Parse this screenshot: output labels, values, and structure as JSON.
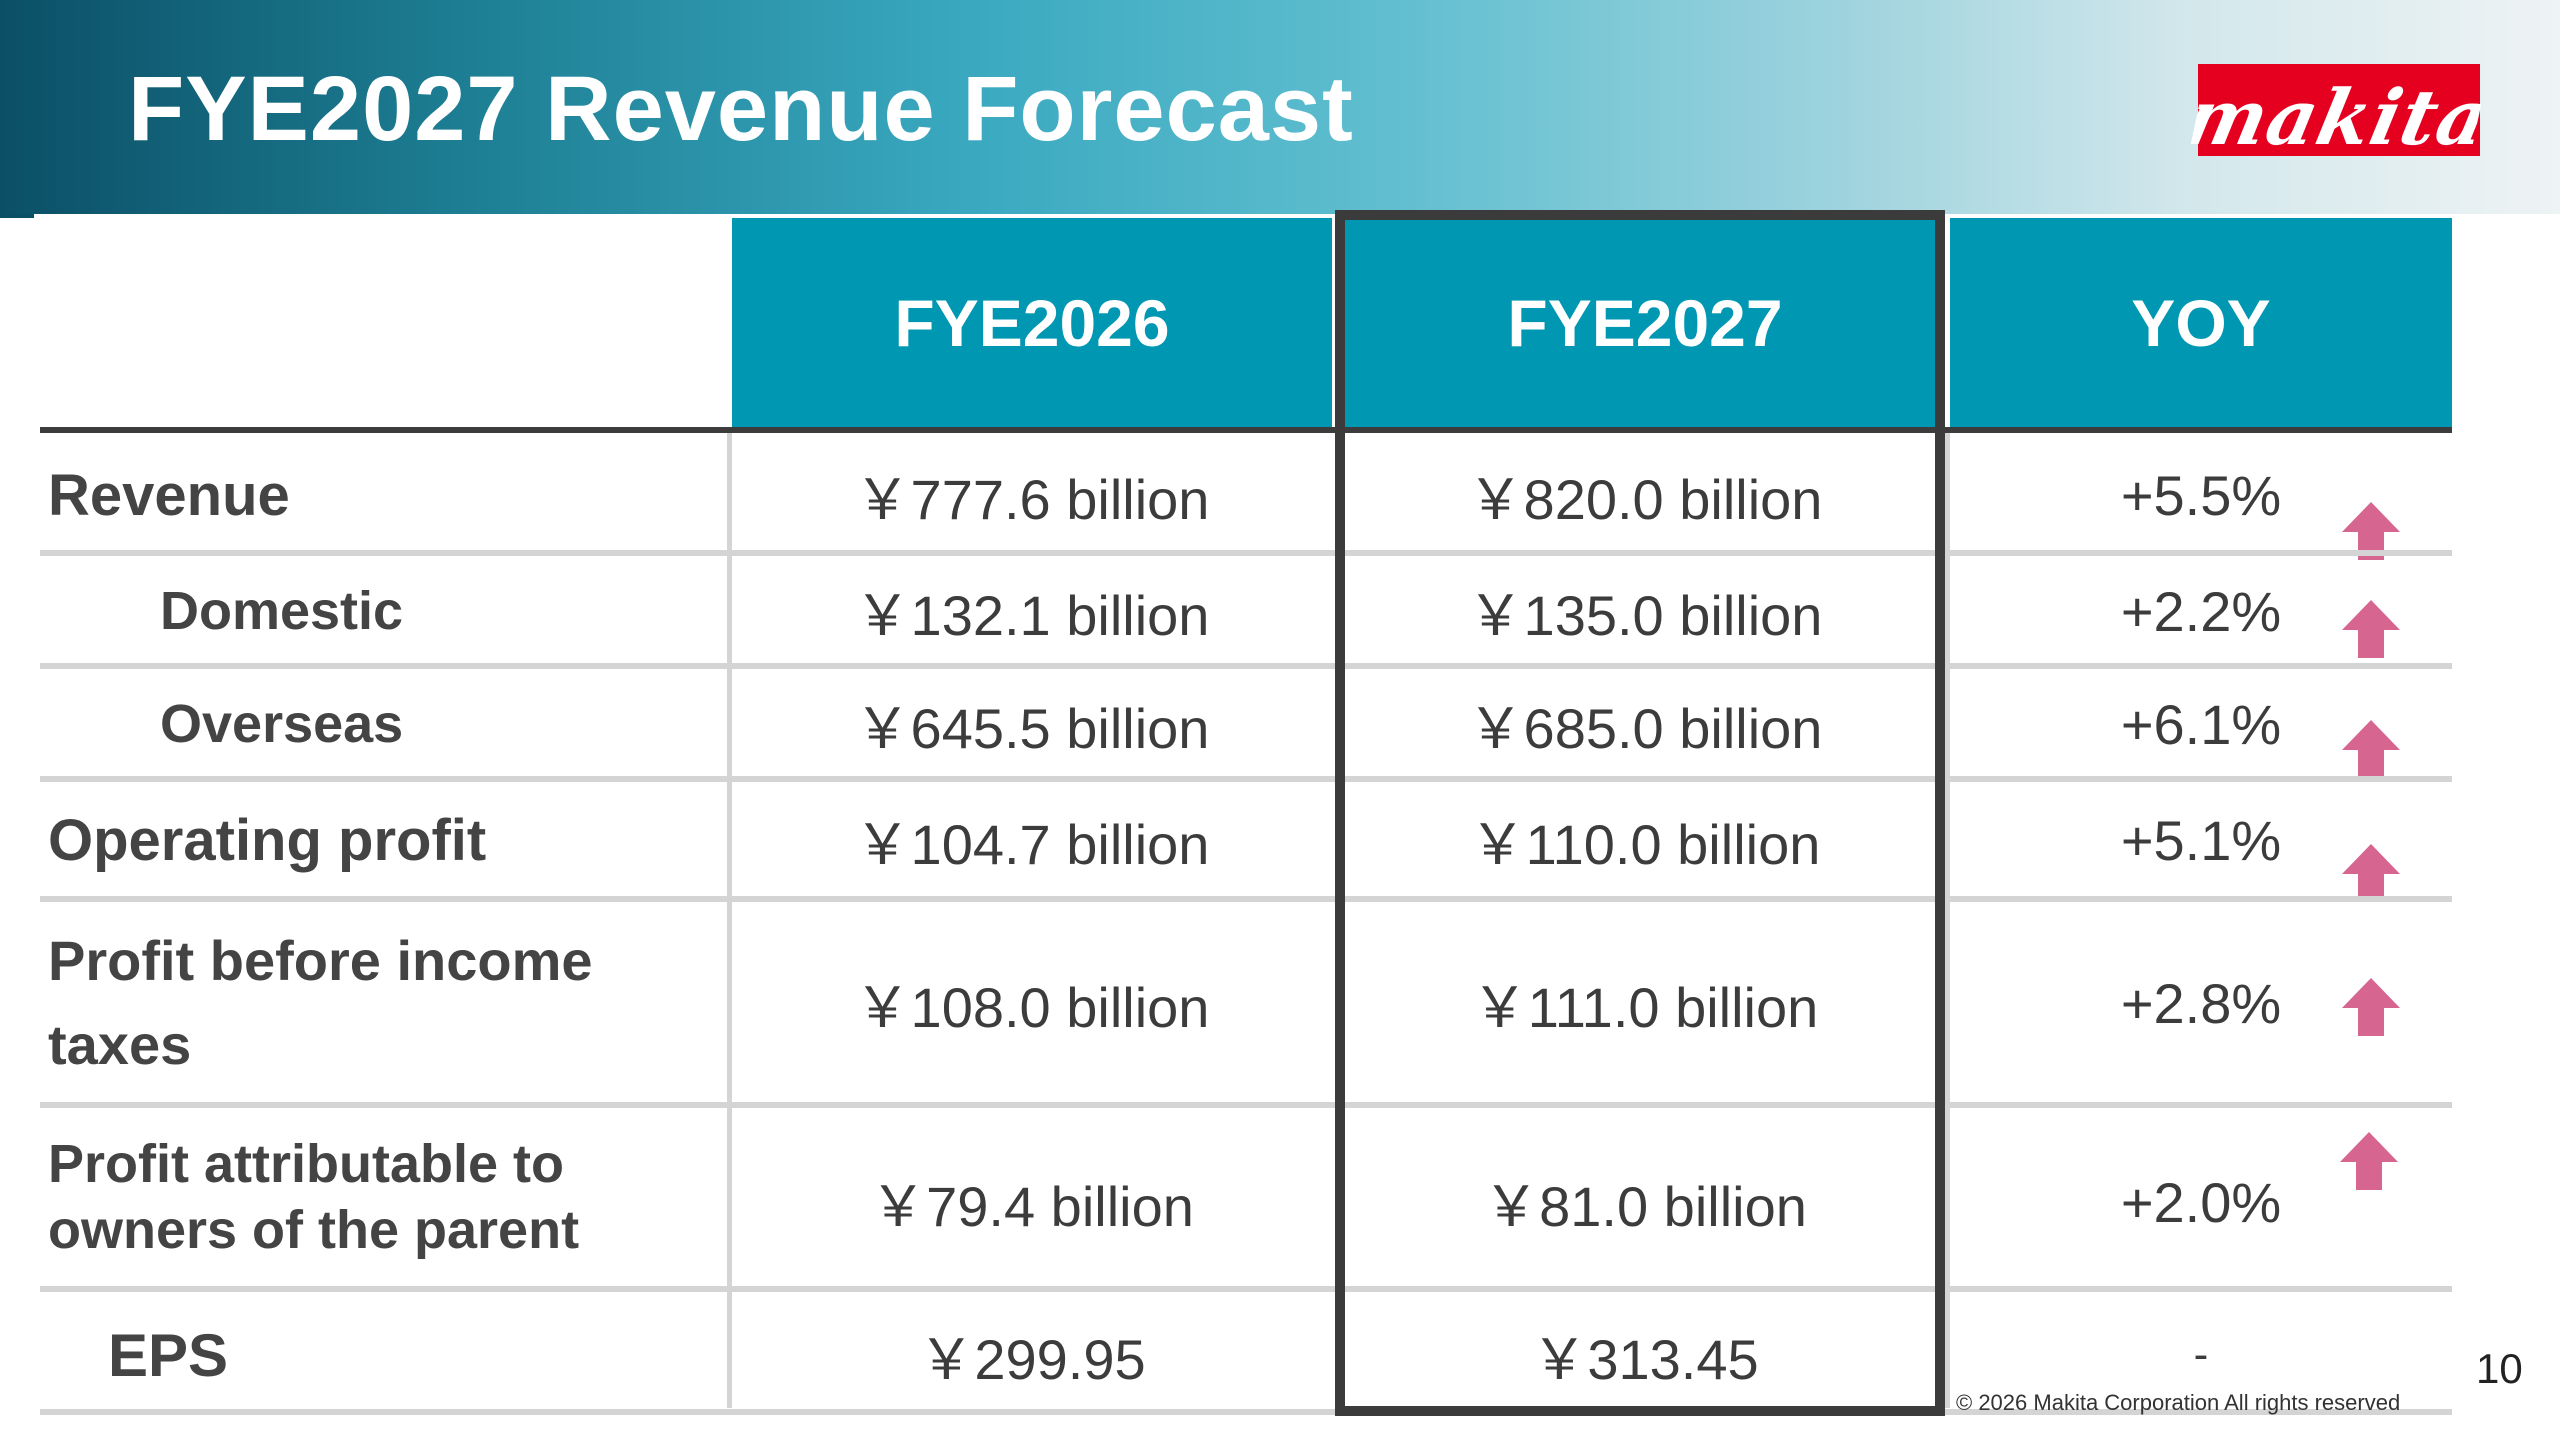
{
  "header": {
    "title": "FYE2027 Revenue Forecast"
  },
  "logo": {
    "text": "makita",
    "color": "#e60020"
  },
  "table": {
    "columns": [
      "FYE2026",
      "FYE2027",
      "YOY"
    ],
    "header_color": "#0097b2",
    "rows": [
      {
        "label": "Revenue",
        "fye2026": "￥777.6 billion",
        "fye2027": "￥820.0 billion",
        "yoy": "+5.5%",
        "trend": "up"
      },
      {
        "label": "Domestic",
        "fye2026": "￥132.1 billion",
        "fye2027": "￥135.0 billion",
        "yoy": "+2.2%",
        "trend": "up"
      },
      {
        "label": "Overseas",
        "fye2026": "￥645.5 billion",
        "fye2027": "￥685.0 billion",
        "yoy": "+6.1%",
        "trend": "up"
      },
      {
        "label": "Operating profit",
        "fye2026": "￥104.7 billion",
        "fye2027": "￥110.0 billion",
        "yoy": "+5.1%",
        "trend": "up"
      },
      {
        "label_line1": "Profit before income",
        "label_line2": "taxes",
        "fye2026": "￥108.0 billion",
        "fye2027": "￥111.0 billion",
        "yoy": "+2.8%",
        "trend": "up"
      },
      {
        "label_line1": "Profit attributable to",
        "label_line2": "owners of the parent",
        "fye2026": "￥79.4 billion",
        "fye2027": "￥81.0 billion",
        "yoy": "+2.0%",
        "trend": "up"
      },
      {
        "label": "EPS",
        "fye2026": "￥299.95",
        "fye2027": "￥313.45",
        "yoy": "-"
      }
    ],
    "highlighted_column": "FYE2027",
    "arrow_color": "#d6668f"
  },
  "footer": {
    "copyright": "© 2026  Makita Corporation All rights reserved",
    "page_number": "10"
  }
}
